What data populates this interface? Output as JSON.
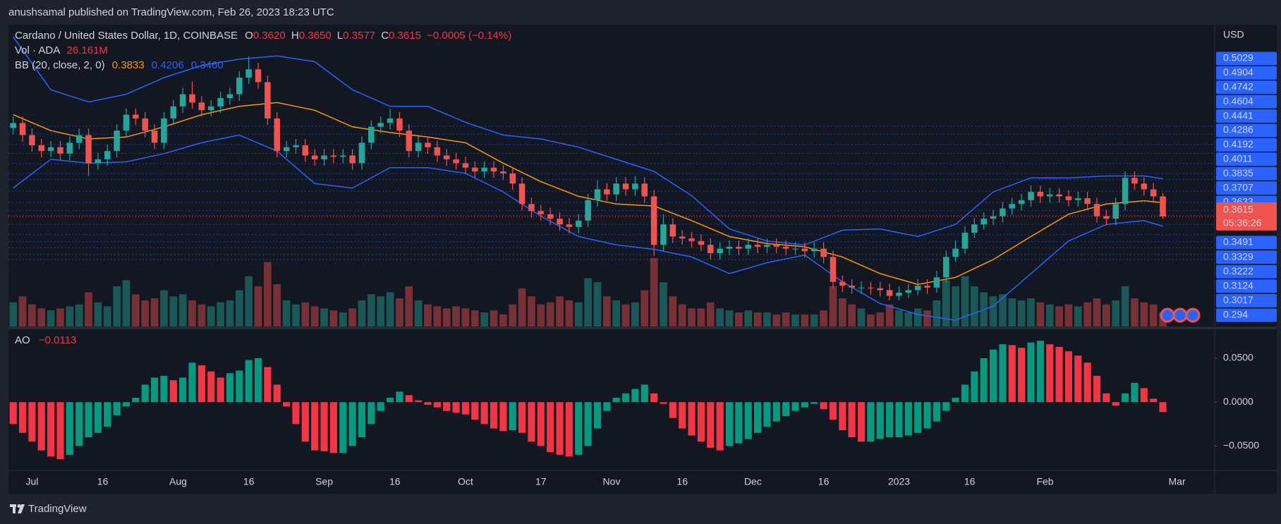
{
  "header": {
    "text": "anushsamal published on TradingView.com, Feb 26, 2023 18:23 UTC"
  },
  "footer": {
    "brand": "TradingView"
  },
  "chart_data": {
    "type": "candlestick",
    "legend": {
      "symbol": "Cardano / United States Dollar, 1D, COINBASE",
      "ohlc": [
        {
          "key": "O",
          "value": "0.3620"
        },
        {
          "key": "H",
          "value": "0.3650"
        },
        {
          "key": "L",
          "value": "0.3577"
        },
        {
          "key": "C",
          "value": "0.3615"
        }
      ],
      "change": "−0.0005 (−0.14%)"
    },
    "volume_legend": {
      "label": "Vol · ADA",
      "value": "26.161M"
    },
    "bb_legend": {
      "label": "BB (20, close, 2, 0)",
      "values": [
        "0.3833",
        "0.4206",
        "0.3460"
      ],
      "colors": [
        "#ff9800",
        "#2962ff",
        "#2962ff"
      ]
    },
    "currency": "USD",
    "last_price": 0.3615,
    "countdown": "05:36:26",
    "up_color": "#26a69a",
    "down_color": "#ef5350",
    "xlim": [
      0,
      128
    ],
    "xticks": [
      {
        "value": 2.5,
        "label": "Jul"
      },
      {
        "value": 10,
        "label": "16"
      },
      {
        "value": 18,
        "label": "Aug"
      },
      {
        "value": 25.5,
        "label": "16"
      },
      {
        "value": 33.5,
        "label": "Sep"
      },
      {
        "value": 41,
        "label": "16"
      },
      {
        "value": 48.5,
        "label": "Oct"
      },
      {
        "value": 56.5,
        "label": "17"
      },
      {
        "value": 64,
        "label": "Nov"
      },
      {
        "value": 71.5,
        "label": "16"
      },
      {
        "value": 79,
        "label": "Dec"
      },
      {
        "value": 86.5,
        "label": "16"
      },
      {
        "value": 94.5,
        "label": "2023"
      },
      {
        "value": 102,
        "label": "16"
      },
      {
        "value": 110,
        "label": "Feb"
      },
      {
        "value": 124,
        "label": "Mar"
      }
    ],
    "ylim": [
      0.189,
      0.662
    ],
    "yticks": [
      0.5029,
      0.4904,
      0.4742,
      0.4604,
      0.4441,
      0.4286,
      0.4192,
      0.4011,
      0.3835,
      0.3707,
      0.3633,
      0.3491,
      0.3329,
      0.3222,
      0.3124,
      0.3017,
      0.294
    ],
    "level_color": "#2962ff",
    "open": [
      0.5,
      0.508,
      0.489,
      0.473,
      0.464,
      0.47,
      0.46,
      0.477,
      0.489,
      0.445,
      0.451,
      0.464,
      0.496,
      0.521,
      0.515,
      0.496,
      0.477,
      0.515,
      0.534,
      0.553,
      0.54,
      0.528,
      0.534,
      0.547,
      0.553,
      0.579,
      0.592,
      0.572,
      0.515,
      0.464,
      0.47,
      0.473,
      0.457,
      0.451,
      0.457,
      0.455,
      0.457,
      0.445,
      0.477,
      0.502,
      0.508,
      0.515,
      0.496,
      0.464,
      0.477,
      0.47,
      0.457,
      0.451,
      0.445,
      0.438,
      0.432,
      0.438,
      0.432,
      0.429,
      0.413,
      0.381,
      0.37,
      0.365,
      0.358,
      0.349,
      0.345,
      0.355,
      0.387,
      0.404,
      0.396,
      0.413,
      0.404,
      0.413,
      0.393,
      0.317,
      0.349,
      0.33,
      0.327,
      0.323,
      0.317,
      0.304,
      0.311,
      0.314,
      0.311,
      0.317,
      0.314,
      0.317,
      0.314,
      0.311,
      0.311,
      0.307,
      0.311,
      0.298,
      0.259,
      0.253,
      0.25,
      0.25,
      0.249,
      0.246,
      0.237,
      0.242,
      0.246,
      0.253,
      0.25,
      0.266,
      0.298,
      0.311,
      0.336,
      0.349,
      0.358,
      0.362,
      0.374,
      0.381,
      0.387,
      0.4,
      0.393,
      0.396,
      0.393,
      0.387,
      0.39,
      0.381,
      0.362,
      0.358,
      0.381,
      0.422,
      0.413,
      0.404,
      0.393
    ],
    "high": [
      0.518,
      0.518,
      0.499,
      0.483,
      0.48,
      0.48,
      0.487,
      0.499,
      0.499,
      0.461,
      0.474,
      0.506,
      0.531,
      0.531,
      0.525,
      0.506,
      0.525,
      0.544,
      0.563,
      0.573,
      0.55,
      0.544,
      0.557,
      0.563,
      0.589,
      0.612,
      0.602,
      0.582,
      0.525,
      0.48,
      0.483,
      0.483,
      0.467,
      0.467,
      0.467,
      0.467,
      0.467,
      0.487,
      0.512,
      0.518,
      0.53,
      0.525,
      0.506,
      0.487,
      0.487,
      0.48,
      0.467,
      0.461,
      0.455,
      0.448,
      0.448,
      0.448,
      0.442,
      0.439,
      0.423,
      0.391,
      0.38,
      0.375,
      0.368,
      0.359,
      0.365,
      0.397,
      0.418,
      0.414,
      0.423,
      0.423,
      0.425,
      0.423,
      0.403,
      0.365,
      0.359,
      0.34,
      0.337,
      0.333,
      0.327,
      0.321,
      0.324,
      0.324,
      0.327,
      0.327,
      0.327,
      0.327,
      0.324,
      0.321,
      0.321,
      0.321,
      0.321,
      0.308,
      0.269,
      0.263,
      0.26,
      0.259,
      0.259,
      0.256,
      0.252,
      0.256,
      0.263,
      0.263,
      0.276,
      0.308,
      0.324,
      0.346,
      0.359,
      0.368,
      0.372,
      0.384,
      0.391,
      0.397,
      0.41,
      0.41,
      0.406,
      0.406,
      0.403,
      0.4,
      0.4,
      0.391,
      0.372,
      0.391,
      0.432,
      0.432,
      0.423,
      0.414,
      0.398
    ],
    "low": [
      0.49,
      0.479,
      0.463,
      0.454,
      0.454,
      0.45,
      0.45,
      0.467,
      0.425,
      0.435,
      0.441,
      0.454,
      0.486,
      0.505,
      0.486,
      0.467,
      0.467,
      0.505,
      0.524,
      0.53,
      0.518,
      0.518,
      0.524,
      0.537,
      0.543,
      0.569,
      0.562,
      0.505,
      0.454,
      0.454,
      0.46,
      0.447,
      0.441,
      0.441,
      0.445,
      0.445,
      0.435,
      0.435,
      0.467,
      0.492,
      0.498,
      0.486,
      0.454,
      0.454,
      0.46,
      0.447,
      0.441,
      0.435,
      0.428,
      0.422,
      0.422,
      0.422,
      0.419,
      0.403,
      0.371,
      0.36,
      0.355,
      0.348,
      0.339,
      0.335,
      0.335,
      0.345,
      0.377,
      0.386,
      0.386,
      0.394,
      0.394,
      0.383,
      0.3,
      0.307,
      0.32,
      0.317,
      0.313,
      0.307,
      0.294,
      0.294,
      0.301,
      0.301,
      0.301,
      0.304,
      0.304,
      0.304,
      0.301,
      0.301,
      0.297,
      0.297,
      0.288,
      0.249,
      0.243,
      0.24,
      0.24,
      0.239,
      0.236,
      0.23,
      0.23,
      0.234,
      0.238,
      0.24,
      0.242,
      0.258,
      0.29,
      0.303,
      0.328,
      0.341,
      0.348,
      0.352,
      0.364,
      0.371,
      0.377,
      0.383,
      0.383,
      0.383,
      0.377,
      0.377,
      0.371,
      0.352,
      0.348,
      0.348,
      0.371,
      0.403,
      0.394,
      0.383,
      0.3577
    ],
    "close": [
      0.508,
      0.489,
      0.473,
      0.464,
      0.47,
      0.46,
      0.477,
      0.489,
      0.445,
      0.451,
      0.464,
      0.496,
      0.521,
      0.515,
      0.496,
      0.477,
      0.515,
      0.534,
      0.553,
      0.54,
      0.528,
      0.534,
      0.547,
      0.553,
      0.579,
      0.592,
      0.572,
      0.515,
      0.464,
      0.47,
      0.473,
      0.457,
      0.451,
      0.457,
      0.455,
      0.457,
      0.445,
      0.477,
      0.502,
      0.508,
      0.515,
      0.496,
      0.464,
      0.477,
      0.47,
      0.457,
      0.451,
      0.445,
      0.438,
      0.432,
      0.438,
      0.432,
      0.429,
      0.413,
      0.381,
      0.37,
      0.365,
      0.358,
      0.349,
      0.345,
      0.355,
      0.387,
      0.404,
      0.396,
      0.413,
      0.404,
      0.413,
      0.393,
      0.317,
      0.349,
      0.33,
      0.327,
      0.323,
      0.317,
      0.304,
      0.311,
      0.314,
      0.311,
      0.317,
      0.314,
      0.317,
      0.314,
      0.311,
      0.311,
      0.307,
      0.311,
      0.298,
      0.259,
      0.253,
      0.25,
      0.25,
      0.249,
      0.246,
      0.237,
      0.242,
      0.246,
      0.253,
      0.25,
      0.266,
      0.298,
      0.311,
      0.336,
      0.349,
      0.358,
      0.362,
      0.374,
      0.381,
      0.387,
      0.4,
      0.393,
      0.396,
      0.393,
      0.387,
      0.39,
      0.381,
      0.362,
      0.358,
      0.381,
      0.422,
      0.413,
      0.404,
      0.393,
      0.3615
    ],
    "volume": {
      "ylim": [
        0,
        350
      ],
      "values": [
        120,
        150,
        110,
        90,
        80,
        90,
        100,
        110,
        170,
        120,
        100,
        200,
        230,
        160,
        130,
        140,
        180,
        150,
        160,
        130,
        110,
        100,
        120,
        130,
        180,
        250,
        200,
        320,
        210,
        130,
        110,
        120,
        100,
        90,
        80,
        70,
        90,
        130,
        160,
        150,
        170,
        140,
        200,
        130,
        110,
        100,
        90,
        100,
        90,
        80,
        70,
        80,
        60,
        110,
        190,
        150,
        110,
        120,
        150,
        130,
        120,
        240,
        220,
        150,
        130,
        110,
        120,
        180,
        340,
        220,
        150,
        110,
        90,
        90,
        120,
        90,
        80,
        70,
        80,
        70,
        70,
        60,
        70,
        60,
        60,
        60,
        80,
        200,
        140,
        110,
        90,
        60,
        70,
        110,
        80,
        70,
        90,
        80,
        130,
        230,
        200,
        250,
        200,
        170,
        150,
        160,
        140,
        130,
        140,
        120,
        110,
        100,
        110,
        100,
        120,
        140,
        110,
        130,
        200,
        140,
        120,
        110,
        70
      ]
    },
    "bollinger": {
      "x": [
        0.5,
        4.5,
        8.5,
        12.5,
        16.5,
        20.5,
        24.5,
        28.5,
        32.5,
        36.5,
        40.5,
        44.5,
        48.5,
        52.5,
        56.5,
        60.5,
        64.5,
        68.5,
        72.5,
        76.5,
        80.5,
        84.5,
        88.5,
        92.5,
        96.5,
        100.5,
        104.5,
        108.5,
        112.5,
        116.5,
        120.5,
        122.5
      ],
      "upper": [
        0.643,
        0.56,
        0.541,
        0.553,
        0.579,
        0.598,
        0.608,
        0.613,
        0.604,
        0.56,
        0.534,
        0.534,
        0.509,
        0.489,
        0.483,
        0.47,
        0.451,
        0.432,
        0.394,
        0.342,
        0.323,
        0.317,
        0.34,
        0.342,
        0.33,
        0.349,
        0.4,
        0.422,
        0.422,
        0.425,
        0.425,
        0.4206
      ],
      "middle": [
        0.521,
        0.496,
        0.483,
        0.486,
        0.502,
        0.521,
        0.534,
        0.54,
        0.528,
        0.502,
        0.493,
        0.486,
        0.477,
        0.445,
        0.416,
        0.393,
        0.381,
        0.378,
        0.355,
        0.33,
        0.319,
        0.314,
        0.298,
        0.272,
        0.255,
        0.266,
        0.294,
        0.33,
        0.365,
        0.381,
        0.386,
        0.3833
      ],
      "lower": [
        0.406,
        0.451,
        0.445,
        0.447,
        0.46,
        0.477,
        0.489,
        0.464,
        0.413,
        0.406,
        0.438,
        0.438,
        0.429,
        0.4,
        0.362,
        0.33,
        0.317,
        0.31,
        0.298,
        0.272,
        0.289,
        0.301,
        0.259,
        0.225,
        0.208,
        0.199,
        0.221,
        0.272,
        0.323,
        0.349,
        0.355,
        0.346
      ],
      "band_color": "#2962ff",
      "middle_color": "#ff9800"
    },
    "ao": {
      "legend": {
        "label": "AO",
        "value": "−0.0113"
      },
      "ylim": [
        -0.077,
        0.083
      ],
      "yticks": [
        {
          "value": 0.05,
          "label": "0.0500"
        },
        {
          "value": 0,
          "label": "0.0000"
        },
        {
          "value": -0.05,
          "label": "−0.0500"
        }
      ],
      "up_color": "#089981",
      "down_color": "#f23645",
      "values": [
        -0.025,
        -0.035,
        -0.045,
        -0.055,
        -0.062,
        -0.065,
        -0.06,
        -0.05,
        -0.04,
        -0.035,
        -0.028,
        -0.015,
        -0.005,
        0.005,
        0.02,
        0.028,
        0.03,
        0.025,
        0.028,
        0.045,
        0.042,
        0.035,
        0.028,
        0.033,
        0.036,
        0.048,
        0.05,
        0.04,
        0.02,
        -0.005,
        -0.025,
        -0.045,
        -0.055,
        -0.056,
        -0.058,
        -0.058,
        -0.05,
        -0.04,
        -0.025,
        -0.01,
        0.005,
        0.012,
        0.008,
        0.002,
        -0.003,
        -0.006,
        -0.01,
        -0.012,
        -0.014,
        -0.02,
        -0.025,
        -0.03,
        -0.033,
        -0.032,
        -0.035,
        -0.045,
        -0.05,
        -0.057,
        -0.06,
        -0.062,
        -0.06,
        -0.05,
        -0.03,
        -0.01,
        0.005,
        0.01,
        0.015,
        0.02,
        0.01,
        -0.002,
        -0.018,
        -0.03,
        -0.038,
        -0.045,
        -0.052,
        -0.055,
        -0.05,
        -0.047,
        -0.042,
        -0.035,
        -0.028,
        -0.022,
        -0.016,
        -0.01,
        -0.006,
        -0.002,
        -0.008,
        -0.02,
        -0.032,
        -0.04,
        -0.045,
        -0.045,
        -0.042,
        -0.04,
        -0.04,
        -0.038,
        -0.035,
        -0.03,
        -0.022,
        -0.01,
        0.005,
        0.02,
        0.035,
        0.05,
        0.06,
        0.066,
        0.065,
        0.062,
        0.068,
        0.07,
        0.066,
        0.063,
        0.058,
        0.053,
        0.045,
        0.03,
        0.01,
        -0.004,
        0.01,
        0.022,
        0.016,
        0.004,
        -0.0113
      ]
    }
  }
}
